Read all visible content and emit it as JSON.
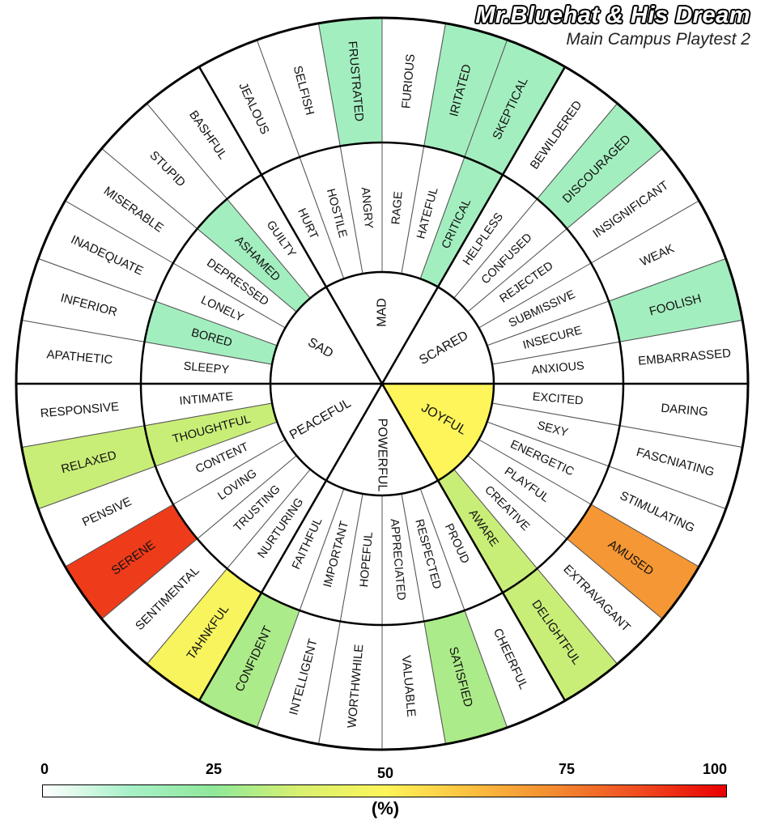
{
  "header": {
    "title": "Mr.Bluehat & His Dream",
    "subtitle": "Main Campus Playtest 2"
  },
  "legend": {
    "ticks": [
      "0",
      "25",
      "50",
      "75",
      "100"
    ],
    "unit": "(%)",
    "colors": [
      "#ffffff",
      "#a8f0c8",
      "#8fe89a",
      "#d8f070",
      "#fdf55a",
      "#fbc040",
      "#f38a30",
      "#f04a20",
      "#e80000"
    ]
  },
  "chart_data": {
    "type": "heatmap",
    "value_range": [
      0,
      100
    ],
    "core": [
      {
        "label": "MAD",
        "value": 0
      },
      {
        "label": "SCARED",
        "value": 0
      },
      {
        "label": "JOYFUL",
        "value": 50
      },
      {
        "label": "POWERFUL",
        "value": 0
      },
      {
        "label": "PEACEFUL",
        "value": 0
      },
      {
        "label": "SAD",
        "value": 0
      }
    ],
    "middle": [
      {
        "label": "RAGE",
        "value": 0
      },
      {
        "label": "HATEFUL",
        "value": 0
      },
      {
        "label": "CRITICAL",
        "value": 15
      },
      {
        "label": "HELPLESS",
        "value": 0
      },
      {
        "label": "CONFUSED",
        "value": 0
      },
      {
        "label": "REJECTED",
        "value": 0
      },
      {
        "label": "SUBMISSIVE",
        "value": 0
      },
      {
        "label": "INSECURE",
        "value": 0
      },
      {
        "label": "ANXIOUS",
        "value": 0
      },
      {
        "label": "EXCITED",
        "value": 0
      },
      {
        "label": "SEXY",
        "value": 0
      },
      {
        "label": "ENERGETIC",
        "value": 0
      },
      {
        "label": "PLAYFUL",
        "value": 0
      },
      {
        "label": "CREATIVE",
        "value": 0
      },
      {
        "label": "AWARE",
        "value": 35
      },
      {
        "label": "PROUD",
        "value": 0
      },
      {
        "label": "RESPECTED",
        "value": 0
      },
      {
        "label": "APPRECIATED",
        "value": 0
      },
      {
        "label": "HOPEFUL",
        "value": 0
      },
      {
        "label": "IMPORTANT",
        "value": 0
      },
      {
        "label": "FAITHFUL",
        "value": 0
      },
      {
        "label": "NURTURING",
        "value": 0
      },
      {
        "label": "TRUSTING",
        "value": 0
      },
      {
        "label": "LOVING",
        "value": 0
      },
      {
        "label": "CONTENT",
        "value": 0
      },
      {
        "label": "THOUGHTFUL",
        "value": 35
      },
      {
        "label": "INTIMATE",
        "value": 0
      },
      {
        "label": "SLEEPY",
        "value": 0
      },
      {
        "label": "BORED",
        "value": 15
      },
      {
        "label": "LONELY",
        "value": 0
      },
      {
        "label": "DEPRESSED",
        "value": 0
      },
      {
        "label": "ASHAMED",
        "value": 15
      },
      {
        "label": "GUILTY",
        "value": 0
      },
      {
        "label": "HURT",
        "value": 0
      },
      {
        "label": "HOSTILE",
        "value": 0
      },
      {
        "label": "ANGRY",
        "value": 0
      }
    ],
    "outer": [
      {
        "label": "FURIOUS",
        "value": 0
      },
      {
        "label": "IRITATED",
        "value": 15
      },
      {
        "label": "SKEPTICAL",
        "value": 15
      },
      {
        "label": "BEWILDERED",
        "value": 0
      },
      {
        "label": "DISCOURAGED",
        "value": 15
      },
      {
        "label": "INSIGNIFICANT",
        "value": 0
      },
      {
        "label": "WEAK",
        "value": 0
      },
      {
        "label": "FOOLISH",
        "value": 15
      },
      {
        "label": "EMBARRASSED",
        "value": 0
      },
      {
        "label": "DARING",
        "value": 0
      },
      {
        "label": "FASCNIATING",
        "value": 0
      },
      {
        "label": "STIMULATING",
        "value": 0
      },
      {
        "label": "AMUSED",
        "value": 72
      },
      {
        "label": "EXTRAVAGANT",
        "value": 0
      },
      {
        "label": "DELIGHTFUL",
        "value": 35
      },
      {
        "label": "CHEERFUL",
        "value": 0
      },
      {
        "label": "SATISFIED",
        "value": 30
      },
      {
        "label": "VALUABLE",
        "value": 0
      },
      {
        "label": "WORTHWHILE",
        "value": 0
      },
      {
        "label": "INTELLIGENT",
        "value": 0
      },
      {
        "label": "CONFIDENT",
        "value": 30
      },
      {
        "label": "TAHNKFUL",
        "value": 48
      },
      {
        "label": "SENTIMENTAL",
        "value": 0
      },
      {
        "label": "SERENE",
        "value": 90
      },
      {
        "label": "PENSIVE",
        "value": 0
      },
      {
        "label": "RELAXED",
        "value": 35
      },
      {
        "label": "RESPONSIVE",
        "value": 0
      },
      {
        "label": "APATHETIC",
        "value": 0
      },
      {
        "label": "INFERIOR",
        "value": 0
      },
      {
        "label": "INADEQUATE",
        "value": 0
      },
      {
        "label": "MISERABLE",
        "value": 0
      },
      {
        "label": "STUPID",
        "value": 0
      },
      {
        "label": "BASHFUL",
        "value": 0
      },
      {
        "label": "JEALOUS",
        "value": 0
      },
      {
        "label": "SELFISH",
        "value": 0
      },
      {
        "label": "FRUSTRATED",
        "value": 15
      }
    ]
  }
}
